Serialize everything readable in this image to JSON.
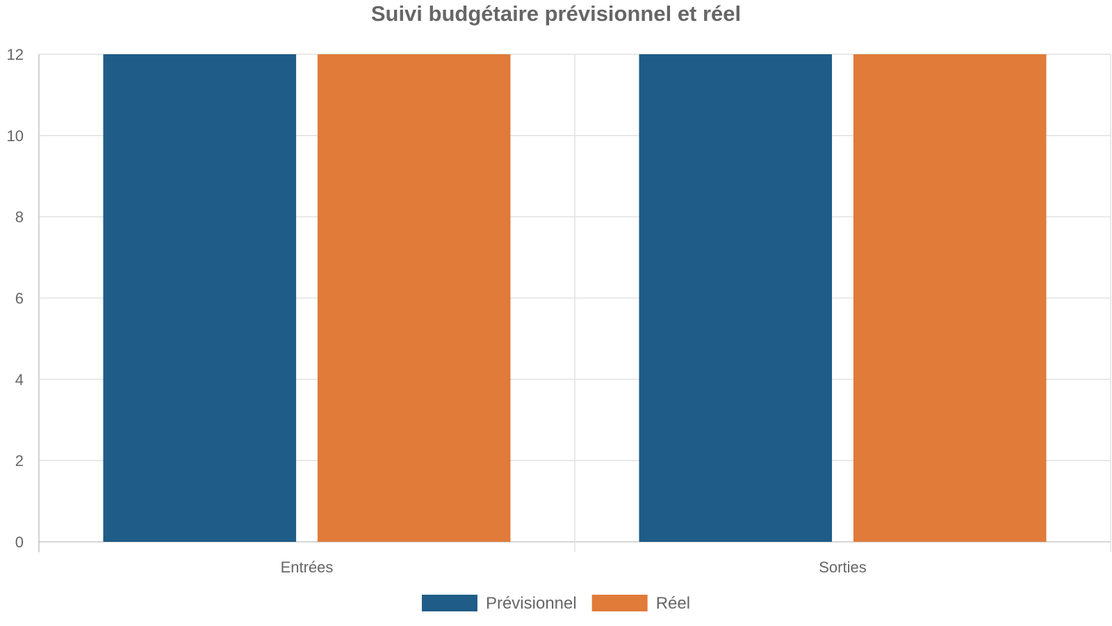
{
  "chart_data": {
    "type": "bar",
    "title": "Suivi budgétaire prévisionnel et réel",
    "xlabel": "",
    "ylabel": "",
    "categories": [
      "Entrées",
      "Sorties"
    ],
    "series": [
      {
        "name": "Prévisionnel",
        "color": "#1f5c87",
        "values": [
          12,
          12
        ]
      },
      {
        "name": "Réel",
        "color": "#e07b3a",
        "values": [
          12,
          12
        ]
      }
    ],
    "ylim": [
      0,
      12
    ],
    "yticks": [
      0,
      2,
      4,
      6,
      8,
      10,
      12
    ],
    "grid": true,
    "legend_position": "bottom"
  }
}
